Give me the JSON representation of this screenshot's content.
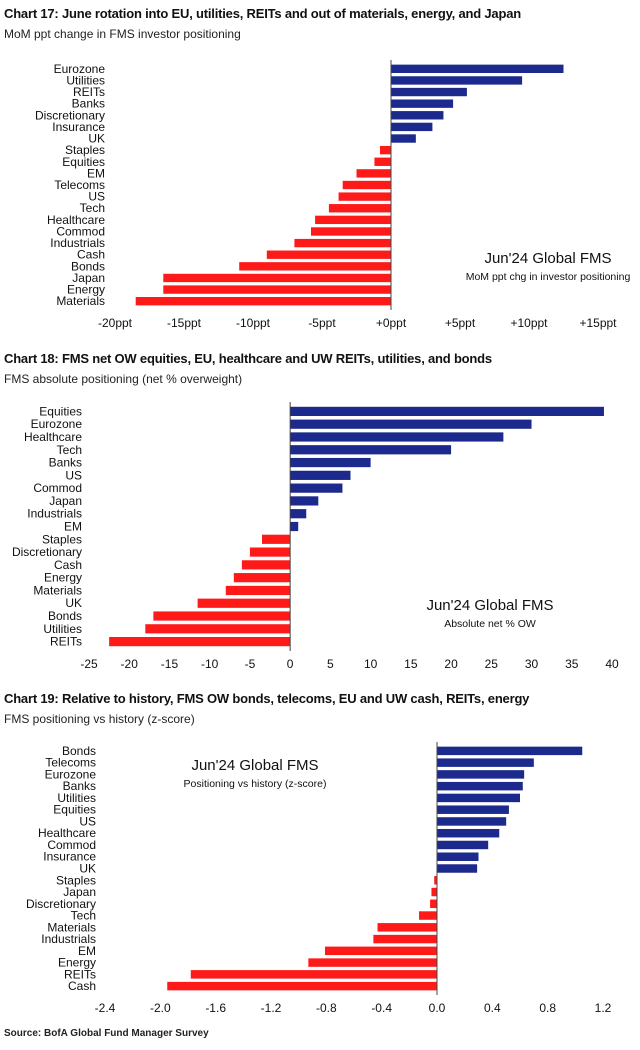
{
  "chart_data": [
    {
      "type": "bar",
      "orientation": "horizontal",
      "title": "Chart 17: June rotation into EU, utilities, REITs and out of materials, energy, and Japan",
      "subtitle": "MoM ppt change in FMS investor positioning",
      "categories": [
        "Eurozone",
        "Utilities",
        "REITs",
        "Banks",
        "Discretionary",
        "Insurance",
        "UK",
        "Staples",
        "Equities",
        "EM",
        "Telecoms",
        "US",
        "Tech",
        "Healthcare",
        "Commod",
        "Industrials",
        "Cash",
        "Bonds",
        "Japan",
        "Energy",
        "Materials"
      ],
      "values": [
        12.5,
        9.5,
        5.5,
        4.5,
        3.8,
        3.0,
        1.8,
        -0.8,
        -1.2,
        -2.5,
        -3.5,
        -3.8,
        -4.5,
        -5.5,
        -5.8,
        -7.0,
        -9.0,
        -11.0,
        -16.5,
        -16.5,
        -18.5
      ],
      "xlim": [
        -20,
        15
      ],
      "ticks": [
        -20,
        -15,
        -10,
        -5,
        0,
        5,
        10,
        15
      ],
      "tick_labels": [
        "-20ppt",
        "-15ppt",
        "-10ppt",
        "-5ppt",
        "+0ppt",
        "+5ppt",
        "+10ppt",
        "+15ppt"
      ],
      "annotation_title": "Jun'24 Global FMS",
      "annotation_subtitle": "MoM ppt chg in investor positioning",
      "colors": {
        "positive": "#1b2a8c",
        "negative": "#ff1a1a"
      }
    },
    {
      "type": "bar",
      "orientation": "horizontal",
      "title": "Chart 18: FMS net OW equities, EU, healthcare and UW REITs, utilities, and bonds",
      "subtitle": "FMS absolute positioning (net % overweight)",
      "categories": [
        "Equities",
        "Eurozone",
        "Healthcare",
        "Tech",
        "Banks",
        "US",
        "Commod",
        "Japan",
        "Industrials",
        "EM",
        "Staples",
        "Discretionary",
        "Cash",
        "Energy",
        "Materials",
        "UK",
        "Bonds",
        "Utilities",
        "REITs"
      ],
      "values": [
        39,
        30,
        26.5,
        20,
        10,
        7.5,
        6.5,
        3.5,
        2,
        1,
        -3.5,
        -5,
        -6,
        -7,
        -8,
        -11.5,
        -17,
        -18,
        -22.5
      ],
      "xlim": [
        -25,
        40
      ],
      "ticks": [
        -25,
        -20,
        -15,
        -10,
        -5,
        0,
        5,
        10,
        15,
        20,
        25,
        30,
        35,
        40
      ],
      "tick_labels": [
        "-25",
        "-20",
        "-15",
        "-10",
        "-5",
        "0",
        "5",
        "10",
        "15",
        "20",
        "25",
        "30",
        "35",
        "40"
      ],
      "annotation_title": "Jun'24 Global FMS",
      "annotation_subtitle": "Absolute net % OW",
      "colors": {
        "positive": "#1b2a8c",
        "negative": "#ff1a1a"
      }
    },
    {
      "type": "bar",
      "orientation": "horizontal",
      "title": "Chart 19: Relative to history, FMS OW bonds, telecoms, EU and UW cash, REITs, energy",
      "subtitle": "FMS positioning vs history (z-score)",
      "categories": [
        "Bonds",
        "Telecoms",
        "Eurozone",
        "Banks",
        "Utilities",
        "Equities",
        "US",
        "Healthcare",
        "Commod",
        "Insurance",
        "UK",
        "Staples",
        "Japan",
        "Discretionary",
        "Tech",
        "Materials",
        "Industrials",
        "EM",
        "Energy",
        "REITs",
        "Cash"
      ],
      "values": [
        1.05,
        0.7,
        0.63,
        0.62,
        0.6,
        0.52,
        0.5,
        0.45,
        0.37,
        0.3,
        0.29,
        -0.02,
        -0.04,
        -0.05,
        -0.13,
        -0.43,
        -0.46,
        -0.81,
        -0.93,
        -1.78,
        -1.95
      ],
      "xlim": [
        -2.4,
        1.2
      ],
      "ticks": [
        -2.4,
        -2.0,
        -1.6,
        -1.2,
        -0.8,
        -0.4,
        0.0,
        0.4,
        0.8,
        1.2
      ],
      "tick_labels": [
        "-2.4",
        "-2.0",
        "-1.6",
        "-1.2",
        "-0.8",
        "-0.4",
        "0.0",
        "0.4",
        "0.8",
        "1.2"
      ],
      "annotation_title": "Jun'24 Global FMS",
      "annotation_subtitle": "Positioning vs history (z-score)",
      "colors": {
        "positive": "#1b2a8c",
        "negative": "#ff1a1a"
      }
    }
  ],
  "source": "Source: BofA Global Fund Manager Survey"
}
